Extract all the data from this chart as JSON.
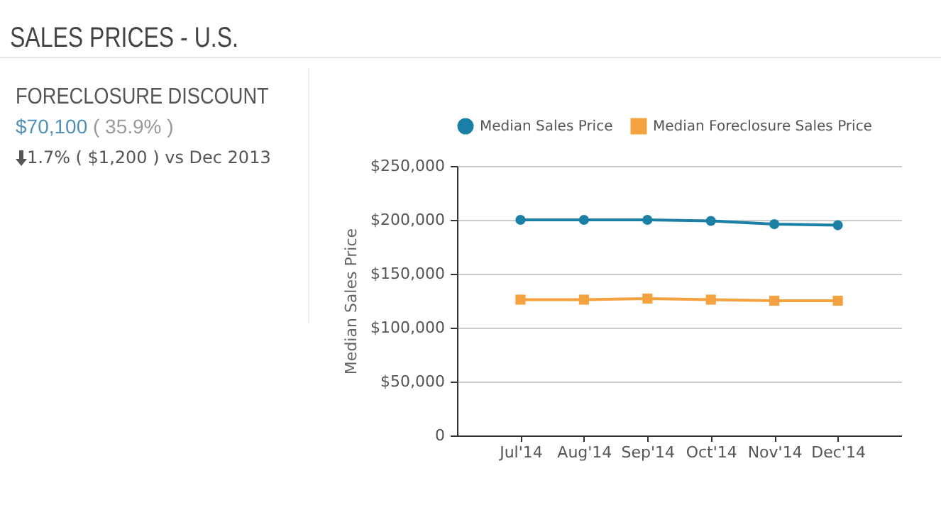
{
  "chart_data": {
    "type": "line",
    "title": "SALES PRICES - U.S.",
    "annotations": [
      "FORECLOSURE DISCOUNT",
      "$70,100 ( 35.9% )",
      "1.7% ( $1,200 ) vs Dec 2013"
    ],
    "ylabel": "Median Sales Price",
    "categories": [
      "Jul'14",
      "Aug'14",
      "Sep'14",
      "Oct'14",
      "Nov'14",
      "Dec'14"
    ],
    "series": [
      {
        "name": "Median Sales Price",
        "color": "#1b7fa6",
        "marker": "circle",
        "values": [
          200000,
          200000,
          200000,
          199000,
          196000,
          195000
        ]
      },
      {
        "name": "Median Foreclosure Sales Price",
        "color": "#f3a23f",
        "marker": "square",
        "values": [
          126000,
          126000,
          127000,
          126000,
          125000,
          125000
        ]
      }
    ],
    "ylim": [
      0,
      250000
    ],
    "yticks": [
      0,
      {
        "value": 50000,
        "label": "$50,000"
      },
      {
        "value": 100000,
        "label": "$100,000"
      },
      {
        "value": 150000,
        "label": "$150,000"
      },
      {
        "value": 200000,
        "label": "$200,000"
      },
      {
        "value": 250000,
        "label": "$250,000"
      }
    ],
    "grid": "y",
    "legend": "top"
  }
}
